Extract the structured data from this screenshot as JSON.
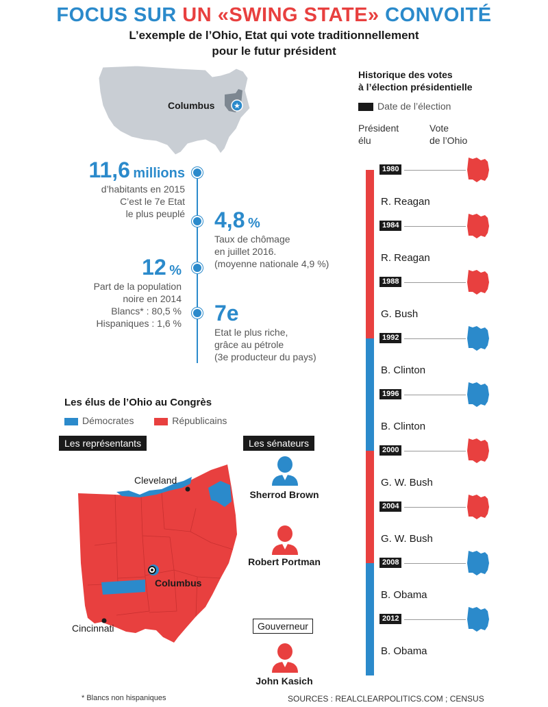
{
  "header": {
    "title_part1": "FOCUS SUR ",
    "title_part2": "UN «SWING STATE»",
    "title_part3": " CONVOITÉ",
    "subtitle_line1": "L’exemple de l’Ohio, Etat qui vote traditionnellement",
    "subtitle_line2": "pour le futur président"
  },
  "us_map": {
    "city": "Columbus"
  },
  "stats": {
    "population": {
      "value": "11,6",
      "unit": "millions",
      "line1": "d’habitants en 2015",
      "line2": "C’est le 7e Etat",
      "line3": "le plus peuplé"
    },
    "unemployment": {
      "value": "4,8",
      "unit": "%",
      "line1": "Taux de chômage",
      "line2": "en juillet 2016.",
      "line3": "(moyenne nationale 4,9 %)"
    },
    "black_pop": {
      "value": "12",
      "unit": "%",
      "line1": "Part de la population",
      "line2": "noire en 2014",
      "line3": "Blancs* : 80,5 %",
      "line4": "Hispaniques : 1,6 %"
    },
    "wealth": {
      "value": "7e",
      "line1": "Etat le plus riche,",
      "line2": "grâce au pétrole",
      "line3": "(3e producteur du pays)"
    }
  },
  "history": {
    "title_line1": "Historique des votes",
    "title_line2": "à l’élection présidentielle",
    "legend": "Date de l’élection",
    "col_president_1": "Président",
    "col_president_2": "élu",
    "col_vote_1": "Vote",
    "col_vote_2": "de l’Ohio",
    "elections": [
      {
        "year": "1980",
        "president": "R. Reagan",
        "party": "rep",
        "ohio": "rep"
      },
      {
        "year": "1984",
        "president": "R. Reagan",
        "party": "rep",
        "ohio": "rep"
      },
      {
        "year": "1988",
        "president": "G. Bush",
        "party": "rep",
        "ohio": "rep"
      },
      {
        "year": "1992",
        "president": "B. Clinton",
        "party": "dem",
        "ohio": "dem"
      },
      {
        "year": "1996",
        "president": "B. Clinton",
        "party": "dem",
        "ohio": "dem"
      },
      {
        "year": "2000",
        "president": "G. W. Bush",
        "party": "rep",
        "ohio": "rep"
      },
      {
        "year": "2004",
        "president": "G. W. Bush",
        "party": "rep",
        "ohio": "rep"
      },
      {
        "year": "2008",
        "president": "B. Obama",
        "party": "dem",
        "ohio": "dem"
      },
      {
        "year": "2012",
        "president": "B. Obama",
        "party": "dem",
        "ohio": "dem"
      }
    ]
  },
  "congress": {
    "title": "Les élus de l’Ohio au Congrès",
    "legend_dem": "Démocrates",
    "legend_rep": "Républicains",
    "representatives_label": "Les représentants",
    "senators_label": "Les sénateurs",
    "senators": [
      {
        "name": "Sherrod Brown",
        "party": "dem"
      },
      {
        "name": "Robert Portman",
        "party": "rep"
      }
    ],
    "governor_label": "Gouverneur",
    "governor": {
      "name": "John Kasich",
      "party": "rep"
    },
    "cities": {
      "cleveland": "Cleveland",
      "columbus": "Columbus",
      "cincinnati": "Cincinnati"
    }
  },
  "footer": {
    "note": "* Blancs non hispaniques",
    "sources": "SOURCES : REALCLEARPOLITICS.COM ; CENSUS"
  },
  "colors": {
    "dem": "#2b8acb",
    "rep": "#e8403f",
    "black": "#1a1a1a",
    "map_gray": "#c9ced4"
  }
}
